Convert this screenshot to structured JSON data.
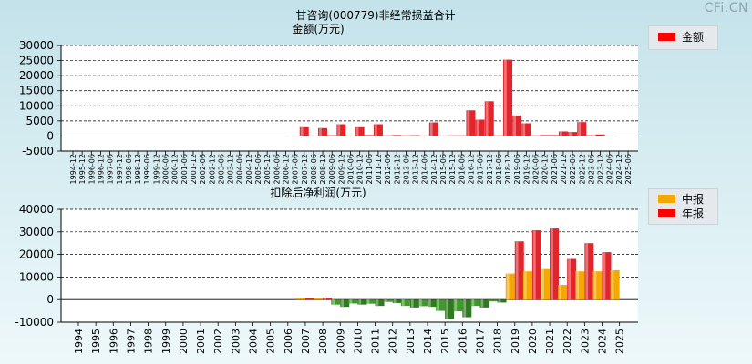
{
  "watermark": "CFi.CN",
  "chart_data": [
    {
      "type": "bar",
      "title": "甘咨询(000779)非经常损益合计",
      "ylabel": "金额(万元)",
      "ylim": [
        -5000,
        30000
      ],
      "yticks": [
        30000,
        25000,
        20000,
        15000,
        10000,
        5000,
        0,
        -5000
      ],
      "grid": true,
      "legend": [
        {
          "name": "金额",
          "color": "#ff0000"
        }
      ],
      "categories": [
        "1994-12",
        "1995-12",
        "1996-06",
        "1996-12",
        "1997-06",
        "1997-12",
        "1998-06",
        "1998-12",
        "1999-06",
        "1999-12",
        "2000-06",
        "2000-12",
        "2001-06",
        "2001-12",
        "2002-06",
        "2002-12",
        "2003-06",
        "2003-12",
        "2004-06",
        "2004-12",
        "2005-06",
        "2005-12",
        "2006-06",
        "2006-12",
        "2007-06",
        "2007-12",
        "2008-06",
        "2008-12",
        "2009-06",
        "2009-12",
        "2010-06",
        "2010-12",
        "2011-06",
        "2011-12",
        "2012-06",
        "2012-12",
        "2013-06",
        "2013-12",
        "2014-06",
        "2014-12",
        "2015-06",
        "2015-12",
        "2016-06",
        "2016-12",
        "2017-06",
        "2017-12",
        "2018-06",
        "2018-12",
        "2019-06",
        "2019-12",
        "2020-06",
        "2020-12",
        "2021-06",
        "2021-12",
        "2022-06",
        "2022-12",
        "2023-06",
        "2023-12",
        "2024-06",
        "2024-12",
        "2025-06"
      ],
      "values": [
        0,
        0,
        0,
        0,
        0,
        0,
        0,
        0,
        0,
        0,
        0,
        0,
        0,
        0,
        0,
        0,
        0,
        0,
        0,
        0,
        0,
        0,
        0,
        0,
        50,
        2900,
        150,
        2600,
        250,
        3900,
        150,
        2900,
        300,
        3900,
        200,
        300,
        200,
        250,
        150,
        4500,
        150,
        200,
        200,
        8500,
        5400,
        11500,
        200,
        25300,
        6800,
        4200,
        200,
        300,
        300,
        1500,
        1300,
        4600,
        250,
        500,
        100,
        0,
        0
      ]
    },
    {
      "type": "bar",
      "title": "扣除后净利润(万元)",
      "ylim": [
        -10000,
        40000
      ],
      "yticks": [
        40000,
        30000,
        20000,
        10000,
        0,
        -10000
      ],
      "grid": true,
      "legend": [
        {
          "name": "中报",
          "color": "#f5a800"
        },
        {
          "name": "年报",
          "color": "#ff0000"
        }
      ],
      "categories": [
        "1994",
        "1995",
        "1996",
        "1997",
        "1998",
        "1999",
        "2000",
        "2001",
        "2002",
        "2003",
        "2004",
        "2005",
        "2006",
        "2007",
        "2008",
        "2009",
        "2010",
        "2011",
        "2012",
        "2013",
        "2014",
        "2015",
        "2016",
        "2017",
        "2018",
        "2019",
        "2020",
        "2021",
        "2022",
        "2023",
        "2024",
        "2025"
      ],
      "series": [
        {
          "name": "中报",
          "values": [
            null,
            null,
            null,
            null,
            null,
            null,
            null,
            null,
            null,
            null,
            null,
            null,
            null,
            600,
            700,
            -2200,
            -1700,
            -1800,
            -1000,
            -2800,
            -2900,
            -5000,
            -5200,
            -2800,
            -800,
            11500,
            12500,
            13500,
            6500,
            12500,
            12500,
            13000
          ]
        },
        {
          "name": "年报",
          "values": [
            null,
            null,
            null,
            null,
            null,
            null,
            null,
            null,
            null,
            null,
            null,
            null,
            null,
            500,
            900,
            -3200,
            -2200,
            -2800,
            -1500,
            -3500,
            -3200,
            -8600,
            -7800,
            -3500,
            -1300,
            25800,
            30700,
            31500,
            18000,
            25000,
            21000,
            null
          ]
        }
      ]
    }
  ]
}
